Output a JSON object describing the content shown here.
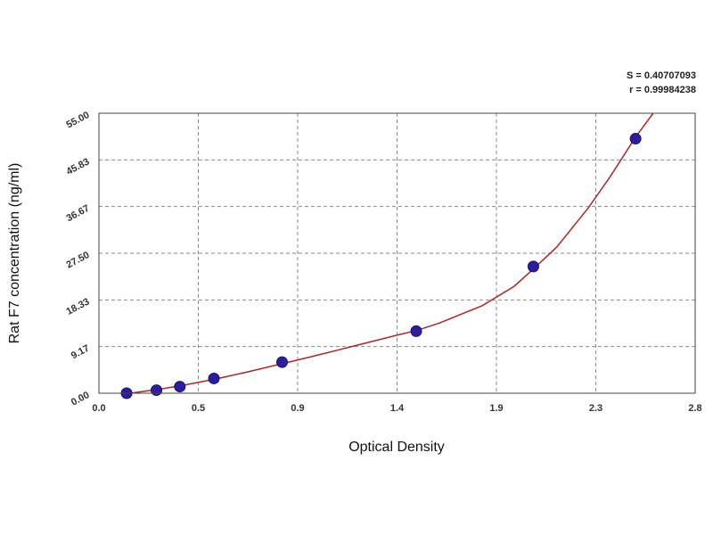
{
  "chart_data": {
    "type": "scatter",
    "title": "",
    "xlabel": "Optical Density",
    "ylabel": "Rat F7 concentration (ng/ml)",
    "xlim": [
      0.0,
      2.8
    ],
    "ylim": [
      0.0,
      55.0
    ],
    "x_ticks": [
      "0.0",
      "0.5",
      "0.9",
      "1.4",
      "1.9",
      "2.3",
      "2.8"
    ],
    "y_ticks": [
      "0.00",
      "9.17",
      "18.33",
      "27.50",
      "36.67",
      "45.83",
      "55.00"
    ],
    "grid": true,
    "points": [
      {
        "x": 0.13,
        "y": 0.0
      },
      {
        "x": 0.27,
        "y": 0.6
      },
      {
        "x": 0.38,
        "y": 1.3
      },
      {
        "x": 0.54,
        "y": 2.9
      },
      {
        "x": 0.86,
        "y": 6.1
      },
      {
        "x": 1.49,
        "y": 12.2
      },
      {
        "x": 2.04,
        "y": 24.9
      },
      {
        "x": 2.52,
        "y": 50.0
      }
    ],
    "curve": [
      {
        "x": 0.1,
        "y": -0.3
      },
      {
        "x": 0.2,
        "y": 0.3
      },
      {
        "x": 0.3,
        "y": 0.9
      },
      {
        "x": 0.4,
        "y": 1.6
      },
      {
        "x": 0.55,
        "y": 2.8
      },
      {
        "x": 0.7,
        "y": 4.2
      },
      {
        "x": 0.86,
        "y": 5.8
      },
      {
        "x": 1.0,
        "y": 7.2
      },
      {
        "x": 1.2,
        "y": 9.3
      },
      {
        "x": 1.4,
        "y": 11.4
      },
      {
        "x": 1.49,
        "y": 12.3
      },
      {
        "x": 1.6,
        "y": 13.8
      },
      {
        "x": 1.8,
        "y": 17.2
      },
      {
        "x": 1.95,
        "y": 21.0
      },
      {
        "x": 2.04,
        "y": 24.4
      },
      {
        "x": 2.15,
        "y": 28.7
      },
      {
        "x": 2.3,
        "y": 36.5
      },
      {
        "x": 2.4,
        "y": 42.5
      },
      {
        "x": 2.52,
        "y": 50.3
      },
      {
        "x": 2.62,
        "y": 56.0
      }
    ],
    "stats": [
      {
        "text": "S = 0.40707093"
      },
      {
        "text": "r = 0.99984238"
      }
    ],
    "colors": {
      "point": "#2b1d9c",
      "curve": "#a52a2a",
      "grid": "#8a8a8a",
      "frame": "#444444"
    }
  }
}
